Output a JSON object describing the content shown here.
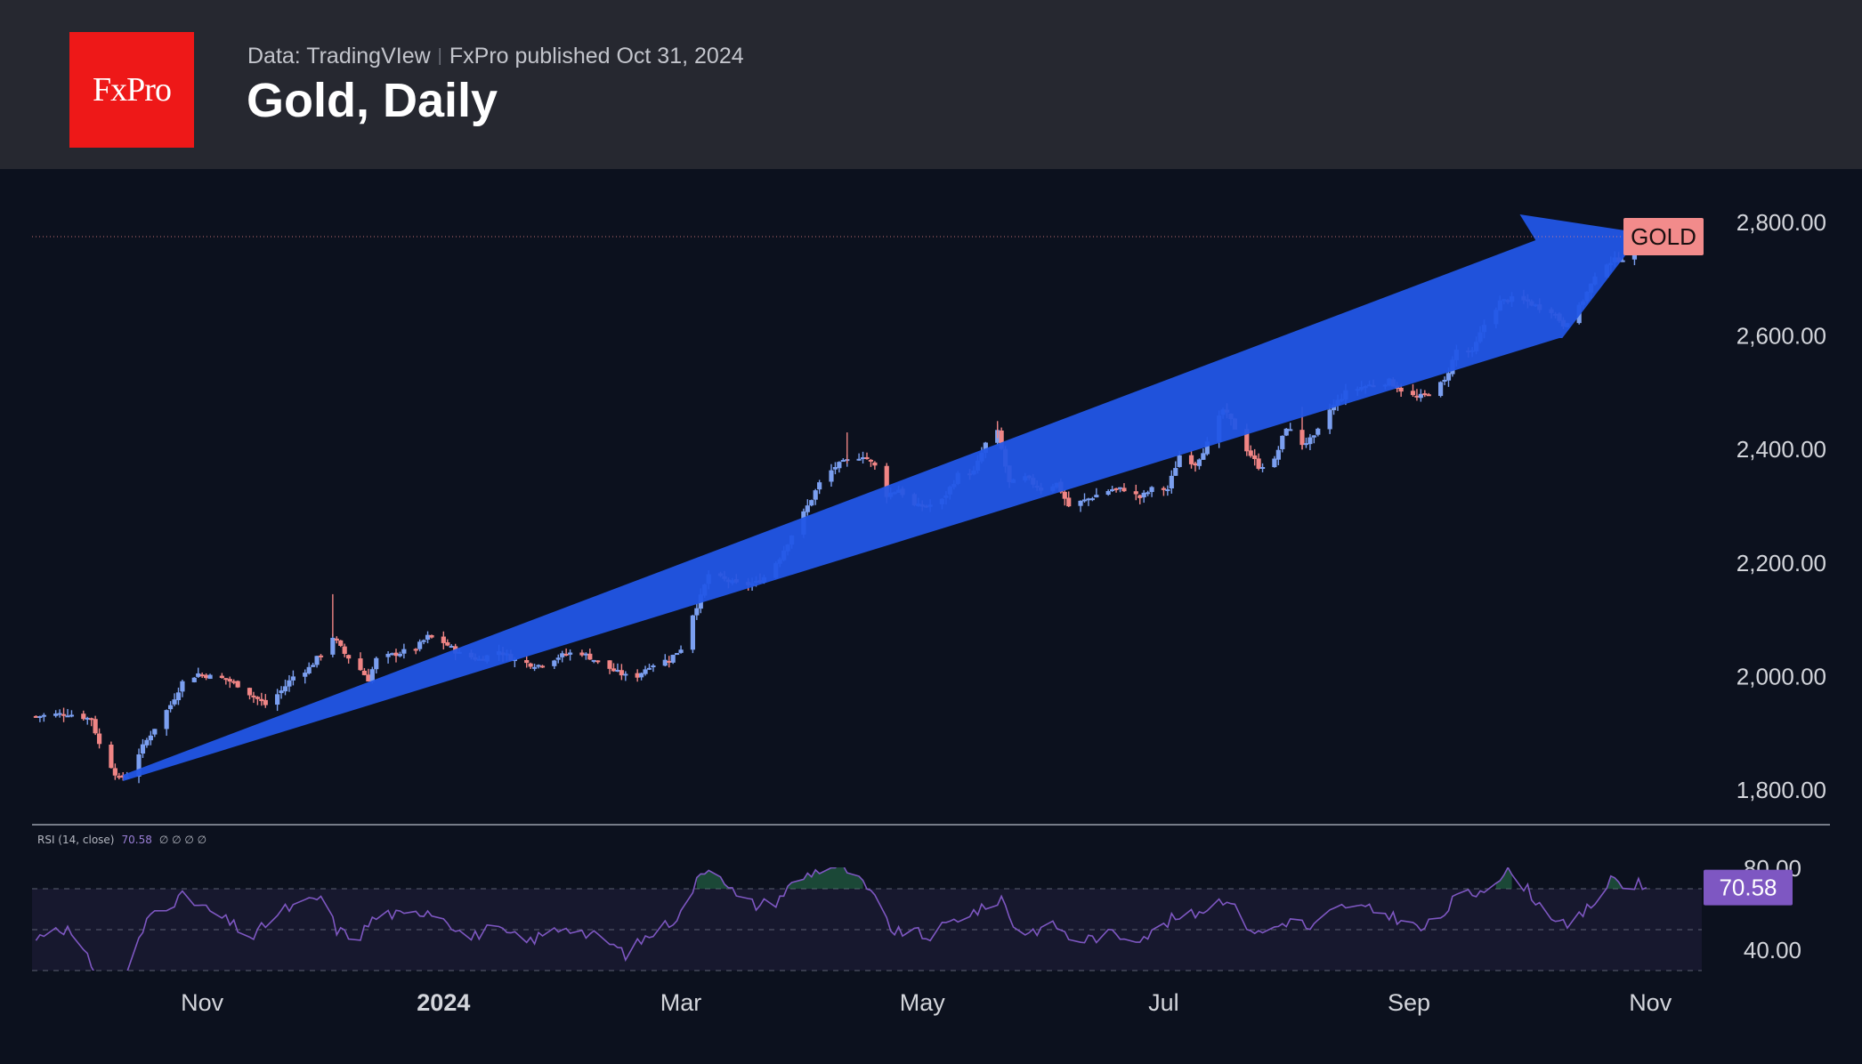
{
  "header": {
    "logo_text": "FxPro",
    "data_source": "Data: TradingVIew",
    "publisher": "FxPro published Oct 31, 2024",
    "title": "Gold, Daily"
  },
  "colors": {
    "up": "#7b9ff0",
    "down": "#f08585",
    "arrow": "#2256e6",
    "rsi_line": "#7e57c2",
    "rsi_badge": "#7e57c2",
    "symbol_badge": "#f28b8b"
  },
  "chart_data": [
    {
      "type": "candlestick",
      "symbol_label": "GOLD",
      "y_tick_labels": [
        "2,800.00",
        "2,600.00",
        "2,400.00",
        "2,200.00",
        "2,000.00",
        "1,800.00"
      ],
      "y_ticks": [
        2800,
        2600,
        2400,
        2200,
        2000,
        1800
      ],
      "ylim": [
        1740,
        2880
      ],
      "x_tick_labels": [
        "Nov",
        "2024",
        "Mar",
        "May",
        "Jul",
        "Sep",
        "Nov"
      ],
      "x_ticks": [
        "2023-11-01",
        "2024-01-01",
        "2024-03-01",
        "2024-05-01",
        "2024-07-01",
        "2024-09-01",
        "2024-11-01"
      ],
      "x_range": [
        "2023-09-19",
        "2024-11-14"
      ],
      "last_price": 2775,
      "close_path": [
        [
          "2023-09-20",
          1930
        ],
        [
          "2023-09-28",
          1935
        ],
        [
          "2023-10-04",
          1925
        ],
        [
          "2023-10-06",
          1880
        ],
        [
          "2023-10-10",
          1830
        ],
        [
          "2023-10-11",
          1820
        ],
        [
          "2023-10-13",
          1825
        ],
        [
          "2023-10-16",
          1865
        ],
        [
          "2023-10-20",
          1910
        ],
        [
          "2023-10-24",
          1950
        ],
        [
          "2023-10-27",
          1990
        ],
        [
          "2023-10-31",
          2005
        ],
        [
          "2023-11-03",
          2000
        ],
        [
          "2023-11-07",
          1995
        ],
        [
          "2023-11-10",
          1985
        ],
        [
          "2023-11-14",
          1965
        ],
        [
          "2023-11-17",
          1950
        ],
        [
          "2023-11-21",
          1975
        ],
        [
          "2023-11-24",
          2000
        ],
        [
          "2023-11-28",
          2015
        ],
        [
          "2023-12-01",
          2040
        ],
        [
          "2023-12-04",
          2070
        ],
        [
          "2023-12-07",
          2040
        ],
        [
          "2023-12-10",
          2020
        ],
        [
          "2023-12-13",
          1995
        ],
        [
          "2023-12-15",
          2030
        ],
        [
          "2023-12-20",
          2040
        ],
        [
          "2023-12-25",
          2050
        ],
        [
          "2023-12-28",
          2070
        ],
        [
          "2024-01-01",
          2060
        ],
        [
          "2024-01-05",
          2040
        ],
        [
          "2024-01-10",
          2030
        ],
        [
          "2024-01-15",
          2045
        ],
        [
          "2024-01-20",
          2025
        ],
        [
          "2024-01-25",
          2020
        ],
        [
          "2024-01-30",
          2035
        ],
        [
          "2024-02-04",
          2045
        ],
        [
          "2024-02-08",
          2030
        ],
        [
          "2024-02-13",
          2010
        ],
        [
          "2024-02-18",
          1995
        ],
        [
          "2024-02-22",
          2020
        ],
        [
          "2024-02-27",
          2030
        ],
        [
          "2024-03-01",
          2050
        ],
        [
          "2024-03-04",
          2110
        ],
        [
          "2024-03-06",
          2140
        ],
        [
          "2024-03-08",
          2180
        ],
        [
          "2024-03-12",
          2170
        ],
        [
          "2024-03-16",
          2160
        ],
        [
          "2024-03-20",
          2165
        ],
        [
          "2024-03-22",
          2175
        ],
        [
          "2024-03-26",
          2210
        ],
        [
          "2024-03-29",
          2250
        ],
        [
          "2024-04-02",
          2300
        ],
        [
          "2024-04-05",
          2340
        ],
        [
          "2024-04-09",
          2370
        ],
        [
          "2024-04-12",
          2380
        ],
        [
          "2024-04-16",
          2390
        ],
        [
          "2024-04-19",
          2370
        ],
        [
          "2024-04-22",
          2320
        ],
        [
          "2024-04-25",
          2330
        ],
        [
          "2024-04-29",
          2300
        ],
        [
          "2024-05-02",
          2300
        ],
        [
          "2024-05-06",
          2310
        ],
        [
          "2024-05-10",
          2355
        ],
        [
          "2024-05-14",
          2360
        ],
        [
          "2024-05-17",
          2410
        ],
        [
          "2024-05-20",
          2430
        ],
        [
          "2024-05-23",
          2340
        ],
        [
          "2024-05-27",
          2350
        ],
        [
          "2024-05-31",
          2330
        ],
        [
          "2024-06-04",
          2340
        ],
        [
          "2024-06-07",
          2300
        ],
        [
          "2024-06-11",
          2310
        ],
        [
          "2024-06-14",
          2320
        ],
        [
          "2024-06-18",
          2330
        ],
        [
          "2024-06-21",
          2330
        ],
        [
          "2024-06-25",
          2315
        ],
        [
          "2024-06-28",
          2330
        ],
        [
          "2024-07-02",
          2330
        ],
        [
          "2024-07-05",
          2390
        ],
        [
          "2024-07-09",
          2375
        ],
        [
          "2024-07-12",
          2410
        ],
        [
          "2024-07-16",
          2470
        ],
        [
          "2024-07-18",
          2450
        ],
        [
          "2024-07-22",
          2400
        ],
        [
          "2024-07-25",
          2370
        ],
        [
          "2024-07-29",
          2380
        ],
        [
          "2024-08-01",
          2440
        ],
        [
          "2024-08-05",
          2410
        ],
        [
          "2024-08-08",
          2420
        ],
        [
          "2024-08-12",
          2470
        ],
        [
          "2024-08-16",
          2500
        ],
        [
          "2024-08-20",
          2510
        ],
        [
          "2024-08-23",
          2515
        ],
        [
          "2024-08-27",
          2520
        ],
        [
          "2024-08-30",
          2505
        ],
        [
          "2024-09-03",
          2490
        ],
        [
          "2024-09-06",
          2500
        ],
        [
          "2024-09-10",
          2520
        ],
        [
          "2024-09-13",
          2575
        ],
        [
          "2024-09-17",
          2570
        ],
        [
          "2024-09-20",
          2620
        ],
        [
          "2024-09-24",
          2660
        ],
        [
          "2024-09-27",
          2665
        ],
        [
          "2024-10-01",
          2660
        ],
        [
          "2024-10-04",
          2650
        ],
        [
          "2024-10-07",
          2645
        ],
        [
          "2024-10-10",
          2620
        ],
        [
          "2024-10-14",
          2650
        ],
        [
          "2024-10-17",
          2690
        ],
        [
          "2024-10-21",
          2730
        ],
        [
          "2024-10-24",
          2735
        ],
        [
          "2024-10-28",
          2745
        ],
        [
          "2024-10-31",
          2775
        ]
      ]
    },
    {
      "type": "line",
      "legend": {
        "name": "RSI (14, close)",
        "value": "70.58",
        "placeholders": "∅ ∅ ∅ ∅"
      },
      "y_tick_labels": [
        "80.00",
        "40.00"
      ],
      "y_ticks": [
        80,
        40
      ],
      "ylim": [
        20,
        90
      ],
      "band": [
        30,
        70
      ],
      "midline": 50,
      "current_value": 70.58,
      "current_value_label": "70.58",
      "rsi_path": [
        [
          "2023-09-20",
          45
        ],
        [
          "2023-09-24",
          52
        ],
        [
          "2023-09-28",
          50
        ],
        [
          "2023-10-02",
          38
        ],
        [
          "2023-10-06",
          28
        ],
        [
          "2023-10-10",
          24
        ],
        [
          "2023-10-12",
          22
        ],
        [
          "2023-10-15",
          40
        ],
        [
          "2023-10-19",
          58
        ],
        [
          "2023-10-23",
          62
        ],
        [
          "2023-10-27",
          66
        ],
        [
          "2023-10-31",
          62
        ],
        [
          "2023-11-04",
          58
        ],
        [
          "2023-11-09",
          52
        ],
        [
          "2023-11-14",
          46
        ],
        [
          "2023-11-18",
          55
        ],
        [
          "2023-11-22",
          60
        ],
        [
          "2023-11-26",
          62
        ],
        [
          "2023-12-01",
          66
        ],
        [
          "2023-12-05",
          50
        ],
        [
          "2023-12-10",
          45
        ],
        [
          "2023-12-14",
          55
        ],
        [
          "2023-12-18",
          58
        ],
        [
          "2023-12-23",
          56
        ],
        [
          "2023-12-28",
          60
        ],
        [
          "2024-01-02",
          55
        ],
        [
          "2024-01-07",
          45
        ],
        [
          "2024-01-12",
          50
        ],
        [
          "2024-01-17",
          48
        ],
        [
          "2024-01-22",
          44
        ],
        [
          "2024-01-27",
          48
        ],
        [
          "2024-02-01",
          52
        ],
        [
          "2024-02-06",
          48
        ],
        [
          "2024-02-11",
          45
        ],
        [
          "2024-02-16",
          38
        ],
        [
          "2024-02-21",
          46
        ],
        [
          "2024-02-26",
          52
        ],
        [
          "2024-03-01",
          58
        ],
        [
          "2024-03-04",
          70
        ],
        [
          "2024-03-07",
          80
        ],
        [
          "2024-03-11",
          78
        ],
        [
          "2024-03-15",
          66
        ],
        [
          "2024-03-20",
          62
        ],
        [
          "2024-03-25",
          64
        ],
        [
          "2024-03-29",
          72
        ],
        [
          "2024-04-03",
          78
        ],
        [
          "2024-04-08",
          81
        ],
        [
          "2024-04-12",
          79
        ],
        [
          "2024-04-16",
          72
        ],
        [
          "2024-04-20",
          62
        ],
        [
          "2024-04-24",
          48
        ],
        [
          "2024-04-28",
          50
        ],
        [
          "2024-05-02",
          46
        ],
        [
          "2024-05-07",
          52
        ],
        [
          "2024-05-12",
          58
        ],
        [
          "2024-05-17",
          60
        ],
        [
          "2024-05-21",
          66
        ],
        [
          "2024-05-25",
          48
        ],
        [
          "2024-05-30",
          50
        ],
        [
          "2024-06-04",
          52
        ],
        [
          "2024-06-08",
          44
        ],
        [
          "2024-06-13",
          46
        ],
        [
          "2024-06-18",
          48
        ],
        [
          "2024-06-23",
          46
        ],
        [
          "2024-06-28",
          48
        ],
        [
          "2024-07-03",
          55
        ],
        [
          "2024-07-08",
          57
        ],
        [
          "2024-07-13",
          62
        ],
        [
          "2024-07-17",
          66
        ],
        [
          "2024-07-21",
          54
        ],
        [
          "2024-07-25",
          48
        ],
        [
          "2024-07-30",
          52
        ],
        [
          "2024-08-03",
          56
        ],
        [
          "2024-08-07",
          50
        ],
        [
          "2024-08-12",
          58
        ],
        [
          "2024-08-16",
          62
        ],
        [
          "2024-08-21",
          60
        ],
        [
          "2024-08-26",
          58
        ],
        [
          "2024-08-31",
          54
        ],
        [
          "2024-09-04",
          50
        ],
        [
          "2024-09-09",
          56
        ],
        [
          "2024-09-13",
          66
        ],
        [
          "2024-09-18",
          68
        ],
        [
          "2024-09-22",
          74
        ],
        [
          "2024-09-26",
          78
        ],
        [
          "2024-09-30",
          72
        ],
        [
          "2024-10-04",
          62
        ],
        [
          "2024-10-08",
          56
        ],
        [
          "2024-10-11",
          50
        ],
        [
          "2024-10-15",
          58
        ],
        [
          "2024-10-19",
          66
        ],
        [
          "2024-10-23",
          76
        ],
        [
          "2024-10-26",
          68
        ],
        [
          "2024-10-29",
          74
        ],
        [
          "2024-10-31",
          70.58
        ]
      ]
    }
  ]
}
